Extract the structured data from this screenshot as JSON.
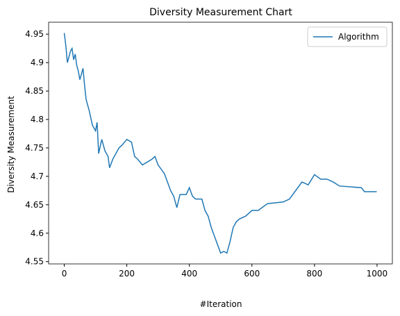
{
  "chart_data": {
    "type": "line",
    "title": "Diversity Measurement Chart",
    "x_label": "#Iteration",
    "y_label": "Diversity Measurement",
    "x": [
      0,
      5,
      10,
      15,
      20,
      25,
      30,
      35,
      40,
      45,
      50,
      55,
      60,
      65,
      70,
      80,
      90,
      100,
      105,
      110,
      120,
      130,
      140,
      145,
      155,
      165,
      175,
      185,
      200,
      215,
      225,
      235,
      250,
      265,
      280,
      290,
      300,
      320,
      330,
      340,
      350,
      360,
      370,
      390,
      400,
      410,
      420,
      440,
      450,
      460,
      470,
      480,
      490,
      500,
      510,
      520,
      530,
      540,
      550,
      560,
      580,
      600,
      620,
      650,
      700,
      720,
      740,
      760,
      780,
      800,
      820,
      840,
      860,
      880,
      950,
      960,
      999
    ],
    "series": [
      {
        "name": "Algorithm",
        "color": "#1f77b4",
        "values": [
          4.952,
          4.93,
          4.9,
          4.91,
          4.92,
          4.925,
          4.905,
          4.915,
          4.895,
          4.885,
          4.87,
          4.88,
          4.89,
          4.86,
          4.835,
          4.815,
          4.79,
          4.78,
          4.795,
          4.74,
          4.765,
          4.745,
          4.735,
          4.715,
          4.73,
          4.74,
          4.75,
          4.755,
          4.765,
          4.76,
          4.735,
          4.73,
          4.72,
          4.725,
          4.73,
          4.735,
          4.72,
          4.705,
          4.69,
          4.675,
          4.665,
          4.645,
          4.668,
          4.668,
          4.68,
          4.665,
          4.66,
          4.66,
          4.64,
          4.63,
          4.61,
          4.595,
          4.58,
          4.565,
          4.568,
          4.565,
          4.585,
          4.61,
          4.62,
          4.625,
          4.63,
          4.64,
          4.64,
          4.652,
          4.655,
          4.66,
          4.675,
          4.69,
          4.685,
          4.703,
          4.695,
          4.695,
          4.69,
          4.683,
          4.68,
          4.673,
          4.673
        ]
      }
    ],
    "xlim": [
      -50,
      1049
    ],
    "ylim": [
      4.546,
      4.971
    ],
    "xticks": [
      0,
      200,
      400,
      600,
      800,
      1000
    ],
    "yticks": [
      4.55,
      4.6,
      4.65,
      4.7,
      4.75,
      4.8,
      4.85,
      4.9,
      4.95
    ],
    "legend": "upper right"
  }
}
